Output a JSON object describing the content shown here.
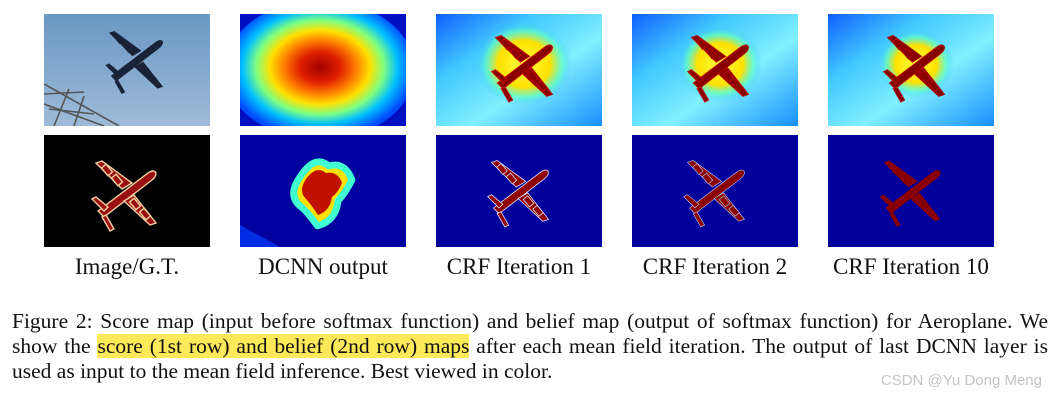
{
  "columns": [
    "Image/G.T.",
    "DCNN output",
    "CRF Iteration 1",
    "CRF Iteration 2",
    "CRF Iteration 10"
  ],
  "rows": [
    "score map",
    "belief map"
  ],
  "caption": {
    "before": "Figure 2: Score map (input before softmax function) and belief map (output of softmax function) for Aeroplane. We show the ",
    "highlight": "score (1st row) and belief (2nd row) maps",
    "after": " after each mean field iteration. The output of last DCNN layer is used as input to the mean field inference. Best viewed in color."
  },
  "watermark": "CSDN @Yu Dong Meng",
  "colors": {
    "highlight": "#fde95a",
    "sky": "#7fa6cc",
    "jet_low": "#00008f",
    "jet_high": "#800000"
  }
}
